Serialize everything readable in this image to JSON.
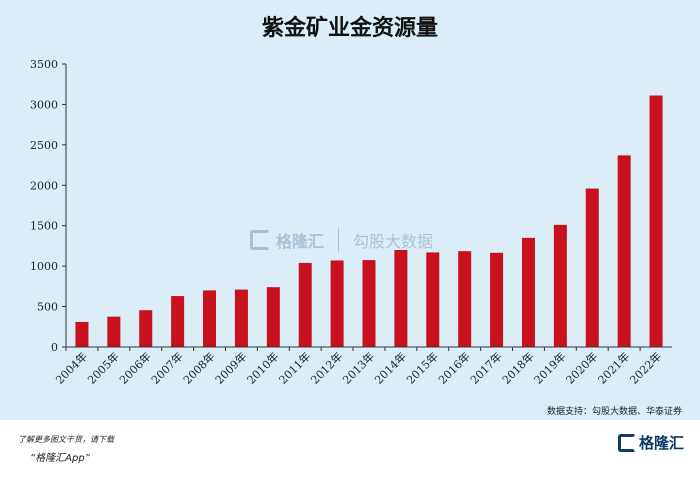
{
  "title": "紫金矿业金资源量",
  "source": "数据支持：勾股大数据、华泰证券",
  "footer": {
    "promo": "了解更多图文干货，请下载",
    "app": "“格隆汇App”",
    "logo_text": "格隆汇",
    "logo_icon": "gelonghui-logo-icon"
  },
  "watermark": {
    "brand": "格隆汇",
    "data": "勾股大数据",
    "icon": "gelonghui-logo-icon"
  },
  "colors": {
    "bar": "#c8101e",
    "background": "#dbeef8",
    "brand": "#0d3a66"
  },
  "chart_data": {
    "type": "bar",
    "categories": [
      "2004年",
      "2005年",
      "2006年",
      "2007年",
      "2008年",
      "2009年",
      "2010年",
      "2011年",
      "2012年",
      "2013年",
      "2014年",
      "2015年",
      "2016年",
      "2017年",
      "2018年",
      "2019年",
      "2020年",
      "2021年",
      "2022年"
    ],
    "values": [
      310,
      375,
      455,
      630,
      700,
      710,
      740,
      1040,
      1070,
      1075,
      1200,
      1170,
      1185,
      1165,
      1350,
      1510,
      1960,
      2370,
      3110
    ],
    "yticks": [
      0,
      500,
      1000,
      1500,
      2000,
      2500,
      3000,
      3500
    ],
    "ylim": [
      0,
      3500
    ],
    "xlabel": "",
    "ylabel": "",
    "grid": false,
    "legend": false
  }
}
